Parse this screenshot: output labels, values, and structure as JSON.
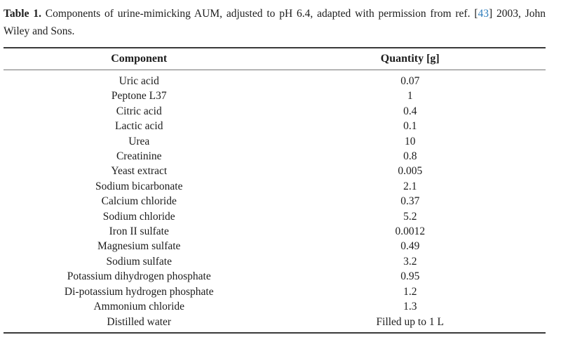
{
  "caption": {
    "label": "Table 1.",
    "text_before_ref": " Components of urine-mimicking AUM, adjusted to pH 6.4, adapted with permission from ref. [",
    "ref_number": "43",
    "text_after_ref": "] 2003, John Wiley and Sons."
  },
  "table": {
    "columns": [
      "Component",
      "Quantity [g]"
    ],
    "rows": [
      [
        "Uric acid",
        "0.07"
      ],
      [
        "Peptone L37",
        "1"
      ],
      [
        "Citric acid",
        "0.4"
      ],
      [
        "Lactic acid",
        "0.1"
      ],
      [
        "Urea",
        "10"
      ],
      [
        "Creatinine",
        "0.8"
      ],
      [
        "Yeast extract",
        "0.005"
      ],
      [
        "Sodium bicarbonate",
        "2.1"
      ],
      [
        "Calcium chloride",
        "0.37"
      ],
      [
        "Sodium chloride",
        "5.2"
      ],
      [
        "Iron II sulfate",
        "0.0012"
      ],
      [
        "Magnesium sulfate",
        "0.49"
      ],
      [
        "Sodium sulfate",
        "3.2"
      ],
      [
        "Potassium dihydrogen phosphate",
        "0.95"
      ],
      [
        "Di-potassium hydrogen phosphate",
        "1.2"
      ],
      [
        "Ammonium chloride",
        "1.3"
      ],
      [
        "Distilled water",
        "Filled up to 1 L"
      ]
    ]
  },
  "colors": {
    "text": "#1c1c1c",
    "link_blue": "#2e7dbc",
    "rule_thick": "#3a3a3a",
    "rule_thin": "#757575"
  }
}
